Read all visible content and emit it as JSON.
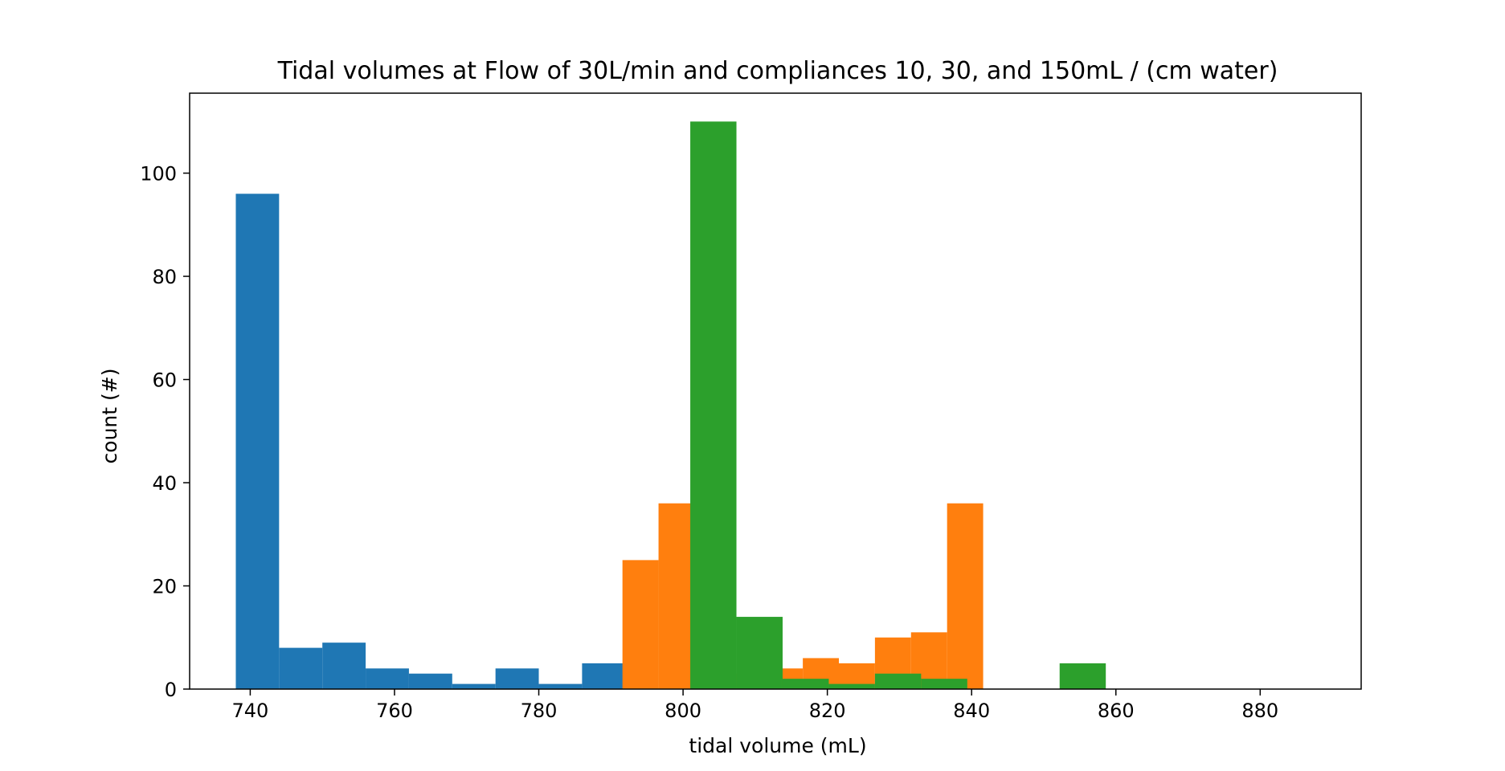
{
  "chart_data": {
    "type": "bar",
    "title": "Tidal volumes at Flow of 30L/min and compliances 10, 30, and 150mL / (cm water)",
    "xlabel": "tidal volume (mL)",
    "ylabel": "count (#)",
    "xlim": [
      731.6,
      894.0
    ],
    "ylim": [
      0,
      115.5
    ],
    "x_ticks": [
      740,
      760,
      780,
      800,
      820,
      840,
      860,
      880
    ],
    "y_ticks": [
      0,
      20,
      40,
      60,
      80,
      100
    ],
    "grid": false,
    "legend": "none",
    "series": [
      {
        "color": "#1f77b4",
        "bins": [
          {
            "x0": 738.0,
            "x1": 744.0,
            "count": 96
          },
          {
            "x0": 744.0,
            "x1": 750.0,
            "count": 8
          },
          {
            "x0": 750.0,
            "x1": 756.0,
            "count": 9
          },
          {
            "x0": 756.0,
            "x1": 762.0,
            "count": 4
          },
          {
            "x0": 762.0,
            "x1": 768.0,
            "count": 3
          },
          {
            "x0": 768.0,
            "x1": 774.0,
            "count": 1
          },
          {
            "x0": 774.0,
            "x1": 780.0,
            "count": 4
          },
          {
            "x0": 780.0,
            "x1": 786.0,
            "count": 1
          },
          {
            "x0": 786.0,
            "x1": 792.0,
            "count": 5
          }
        ]
      },
      {
        "color": "#ff7f0e",
        "bins": [
          {
            "x0": 791.6,
            "x1": 796.6,
            "count": 25
          },
          {
            "x0": 796.6,
            "x1": 801.6,
            "count": 36
          },
          {
            "x0": 806.6,
            "x1": 811.6,
            "count": 3
          },
          {
            "x0": 811.6,
            "x1": 816.6,
            "count": 4
          },
          {
            "x0": 816.6,
            "x1": 821.6,
            "count": 6
          },
          {
            "x0": 821.6,
            "x1": 826.6,
            "count": 5
          },
          {
            "x0": 826.6,
            "x1": 831.6,
            "count": 10
          },
          {
            "x0": 831.6,
            "x1": 836.6,
            "count": 11
          },
          {
            "x0": 836.6,
            "x1": 841.6,
            "count": 36
          }
        ]
      },
      {
        "color": "#2ca02c",
        "bins": [
          {
            "x0": 801.0,
            "x1": 807.4,
            "count": 110
          },
          {
            "x0": 807.4,
            "x1": 813.8,
            "count": 14
          },
          {
            "x0": 813.8,
            "x1": 820.2,
            "count": 2
          },
          {
            "x0": 820.2,
            "x1": 826.6,
            "count": 1
          },
          {
            "x0": 826.6,
            "x1": 833.0,
            "count": 3
          },
          {
            "x0": 833.0,
            "x1": 839.4,
            "count": 2
          },
          {
            "x0": 839.4,
            "x1": 845.8,
            "count": 0
          },
          {
            "x0": 845.8,
            "x1": 852.2,
            "count": 0
          },
          {
            "x0": 852.2,
            "x1": 858.6,
            "count": 5
          }
        ]
      }
    ]
  }
}
